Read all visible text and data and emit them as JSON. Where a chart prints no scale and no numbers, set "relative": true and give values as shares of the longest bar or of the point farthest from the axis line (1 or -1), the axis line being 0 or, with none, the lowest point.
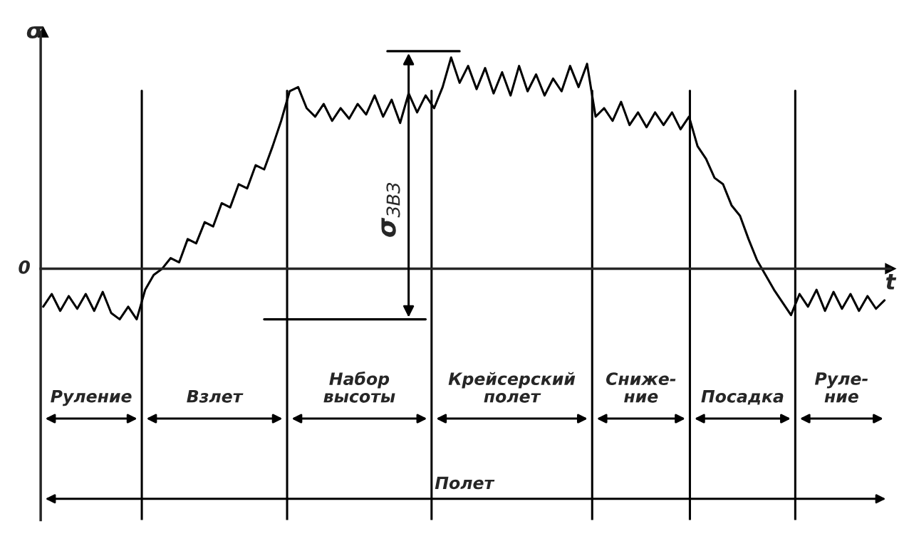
{
  "chart_data": {
    "type": "line",
    "relative": true,
    "xlabel": "t",
    "ylabel": "σ",
    "categories": [
      null,
      null,
      null,
      null,
      null,
      null,
      null,
      null,
      null,
      null,
      null,
      null,
      null,
      null,
      null,
      null,
      null,
      null,
      null,
      null,
      null,
      null,
      null,
      null,
      null,
      null,
      null,
      null,
      null,
      null,
      null,
      null,
      null,
      null,
      null,
      null,
      null,
      null,
      null,
      null,
      null,
      null,
      null,
      null,
      null,
      null,
      null,
      null,
      null,
      null,
      null,
      null,
      null,
      null,
      null,
      null,
      null,
      null,
      null,
      null,
      null,
      null,
      null,
      null,
      null,
      null,
      null,
      null,
      null,
      null,
      null,
      null,
      null,
      null,
      null,
      null,
      null,
      null,
      null,
      null,
      null,
      null,
      null,
      null,
      null,
      null,
      null,
      null,
      null,
      null,
      null,
      null,
      null,
      null,
      null,
      null,
      null,
      null,
      null,
      null
    ],
    "series": [
      {
        "color": "#000000",
        "values": [
          -0.18,
          -0.12,
          -0.2,
          -0.13,
          -0.19,
          -0.12,
          -0.2,
          -0.11,
          -0.21,
          -0.24,
          -0.18,
          -0.24,
          -0.1,
          -0.03,
          0.0,
          0.05,
          0.03,
          0.14,
          0.12,
          0.22,
          0.2,
          0.31,
          0.29,
          0.4,
          0.38,
          0.49,
          0.47,
          0.58,
          0.7,
          0.84,
          0.86,
          0.76,
          0.72,
          0.78,
          0.7,
          0.76,
          0.71,
          0.78,
          0.73,
          0.82,
          0.72,
          0.8,
          0.69,
          0.83,
          0.74,
          0.82,
          0.76,
          0.86,
          1.0,
          0.88,
          0.96,
          0.85,
          0.95,
          0.83,
          0.93,
          0.82,
          0.96,
          0.84,
          0.92,
          0.82,
          0.9,
          0.84,
          0.96,
          0.86,
          0.97,
          0.72,
          0.76,
          0.7,
          0.79,
          0.68,
          0.74,
          0.67,
          0.74,
          0.68,
          0.74,
          0.66,
          0.72,
          0.58,
          0.52,
          0.43,
          0.4,
          0.3,
          0.25,
          0.14,
          0.04,
          -0.03,
          -0.1,
          -0.16,
          -0.22,
          -0.12,
          -0.18,
          -0.1,
          -0.2,
          -0.11,
          -0.19,
          -0.12,
          -0.2,
          -0.13,
          -0.19,
          -0.15
        ]
      }
    ],
    "annotations": [
      "0",
      "σ$_{ЗВЗ}$",
      "Руление",
      "Взлет",
      "Набор\nвысоты",
      "Крейсерский\nполет",
      "Сниже-\nние",
      "Посадка",
      "Руле-\nние",
      "Полет"
    ],
    "marker": "none"
  }
}
